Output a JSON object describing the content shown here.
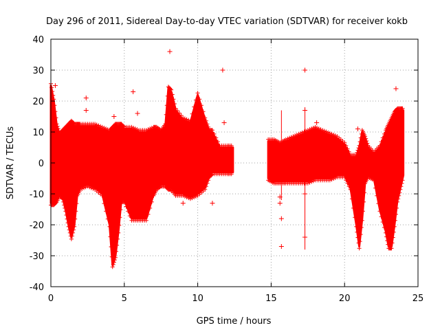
{
  "chart_data": {
    "type": "scatter",
    "title": "Day 296 of 2011, Sidereal Day-to-day VTEC variation (SDTVAR) for receiver kokb",
    "xlabel": "GPS time / hours",
    "ylabel": "SDTVAR / TECUs",
    "xlim": [
      0,
      25
    ],
    "ylim": [
      -40,
      40
    ],
    "xticks": [
      0,
      5,
      10,
      15,
      20,
      25
    ],
    "yticks": [
      -40,
      -30,
      -20,
      -10,
      0,
      10,
      20,
      30,
      40
    ],
    "grid": true,
    "marker": "+",
    "color": "#ff0000",
    "series": [
      {
        "name": "SDTVAR",
        "envelope": {
          "x": [
            0.0,
            0.2,
            0.4,
            0.6,
            0.8,
            1.0,
            1.2,
            1.4,
            1.6,
            1.8,
            2.0,
            2.5,
            3.0,
            3.5,
            4.0,
            4.2,
            4.4,
            4.6,
            4.8,
            5.0,
            5.5,
            6.0,
            6.5,
            7.0,
            7.2,
            7.5,
            7.8,
            8.0,
            8.2,
            8.5,
            9.0,
            9.5,
            10.0,
            10.5,
            10.8,
            11.0,
            11.5,
            12.0,
            12.4
          ],
          "upper": [
            25,
            20,
            12,
            9,
            10,
            11,
            12,
            13,
            12,
            12,
            12,
            12,
            12,
            11,
            10,
            11,
            12,
            12,
            12,
            11,
            11,
            10,
            10,
            11,
            11,
            10,
            12,
            24,
            23,
            17,
            14,
            13,
            22,
            14,
            10,
            10,
            5,
            5,
            5
          ],
          "lower": [
            -13,
            -13,
            -12,
            -10,
            -11,
            -15,
            -20,
            -24,
            -20,
            -10,
            -8,
            -7,
            -8,
            -10,
            -20,
            -33,
            -30,
            -22,
            -12,
            -12,
            -18,
            -18,
            -18,
            -10,
            -8,
            -7,
            -7,
            -8,
            -8,
            -10,
            -10,
            -11,
            -10,
            -8,
            -4,
            -3,
            -3,
            -3,
            -3
          ]
        },
        "envelope2": {
          "x": [
            14.8,
            15.2,
            15.6,
            16.0,
            16.5,
            17.0,
            17.5,
            18.0,
            18.5,
            19.0,
            19.5,
            20.0,
            20.4,
            20.8,
            21.0,
            21.2,
            21.4,
            21.6,
            22.0,
            22.4,
            22.8,
            23.0,
            23.2,
            23.4,
            23.6,
            23.8,
            24.0
          ],
          "upper": [
            7,
            7,
            6,
            7,
            8,
            9,
            10,
            11,
            10,
            9,
            8,
            6,
            2,
            2,
            5,
            10,
            8,
            5,
            3,
            5,
            10,
            12,
            14,
            16,
            17,
            17,
            17
          ],
          "lower": [
            -5,
            -6,
            -6,
            -6,
            -6,
            -6,
            -6,
            -5,
            -5,
            -5,
            -4,
            -4,
            -8,
            -20,
            -27,
            -18,
            -6,
            -4,
            -5,
            -15,
            -22,
            -27,
            -27,
            -20,
            -12,
            -8,
            -4
          ]
        },
        "outliers": {
          "x": [
            8.1,
            11.7,
            11.8,
            17.3,
            15.7,
            15.7,
            17.3,
            17.3,
            17.3,
            23.5,
            2.4,
            2.4,
            5.6,
            5.9,
            4.3,
            4.1,
            11.0,
            8.2,
            18.1,
            20.9,
            15.6,
            15.6,
            9.0,
            0.3
          ],
          "y": [
            36,
            30,
            13,
            30,
            -27,
            -18,
            -24,
            -10,
            17,
            24,
            21,
            17,
            23,
            16,
            15,
            -9,
            -13,
            -9,
            13,
            11,
            -13,
            -11,
            -13,
            25
          ]
        }
      }
    ]
  }
}
